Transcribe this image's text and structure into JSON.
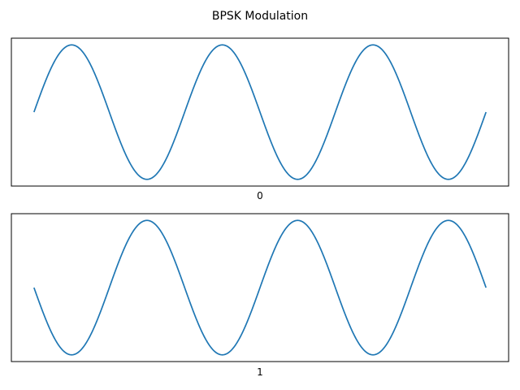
{
  "figure": {
    "title": "BPSK Modulation"
  },
  "chart_data": [
    {
      "type": "line",
      "xlabel": "0",
      "ylabel": "",
      "grid": false,
      "xticks": false,
      "yticks": false,
      "xlim": [
        -0.15,
        3.15
      ],
      "ylim": [
        -1.1,
        1.1
      ],
      "function": "sin(2*pi*t)",
      "series": [
        {
          "x_range": [
            0,
            3
          ],
          "color": "#1f77b4"
        }
      ]
    },
    {
      "type": "line",
      "xlabel": "1",
      "ylabel": "",
      "grid": false,
      "xticks": false,
      "yticks": false,
      "xlim": [
        -0.15,
        3.15
      ],
      "ylim": [
        -1.1,
        1.1
      ],
      "function": "-sin(2*pi*t)",
      "series": [
        {
          "x_range": [
            0,
            3
          ],
          "color": "#1f77b4"
        }
      ]
    }
  ]
}
